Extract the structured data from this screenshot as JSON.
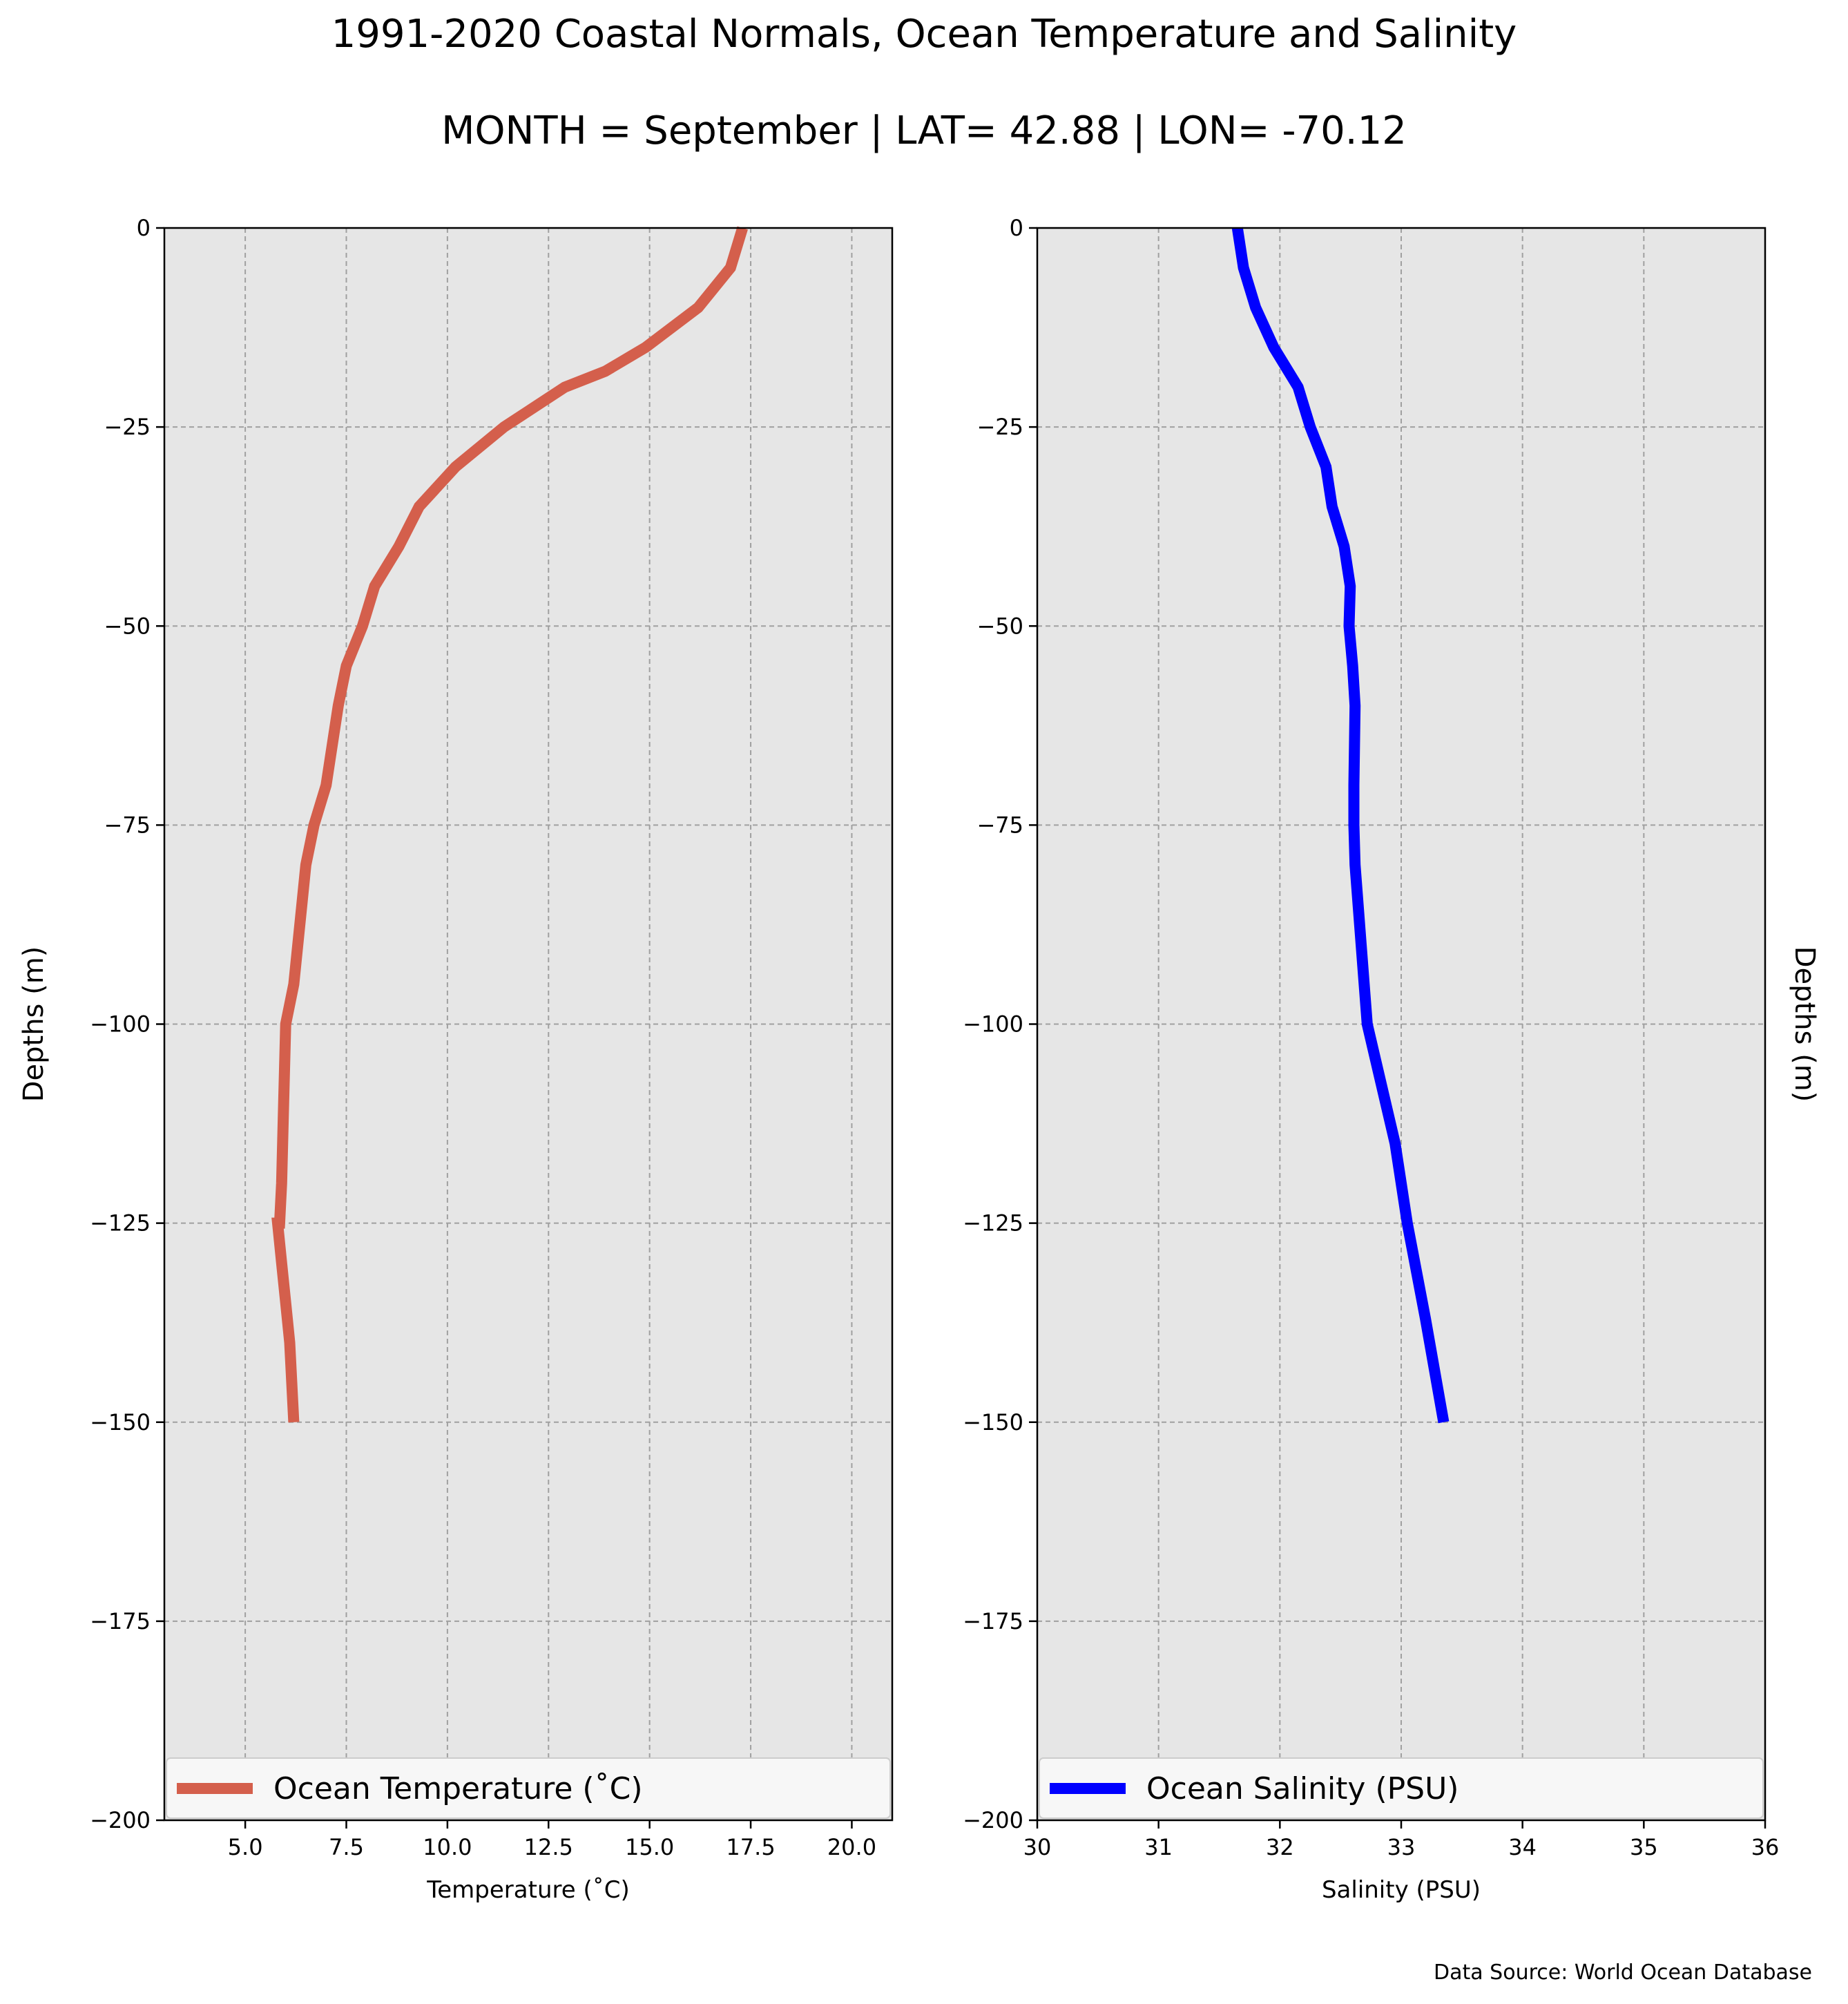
{
  "title": "1991-2020 Coastal Normals, Ocean Temperature and Salinity",
  "subtitle": "MONTH = September | LAT= 42.88 | LON= -70.12",
  "source_note": "Data Source: World Ocean Database",
  "colors": {
    "panel_bg": "#e6e6e6",
    "grid": "#a0a0a0",
    "temperature": "#d45f4c",
    "salinity": "#0000ff"
  },
  "chart_data": [
    {
      "type": "line",
      "xlabel": "Temperature ($^\\circ$C)",
      "xlabel_display": "Temperature (˚C)",
      "ylabel": "Depths (m)",
      "xlim": [
        3,
        21
      ],
      "ylim": [
        -200,
        0
      ],
      "xticks": [
        5.0,
        7.5,
        10.0,
        12.5,
        15.0,
        17.5,
        20.0
      ],
      "xtick_labels": [
        "5.0",
        "7.5",
        "10.0",
        "12.5",
        "15.0",
        "17.5",
        "20.0"
      ],
      "yticks": [
        0,
        -25,
        -50,
        -75,
        -100,
        -125,
        -150,
        -175,
        -200
      ],
      "ytick_labels": [
        "0",
        "−25",
        "−50",
        "−75",
        "−100",
        "−125",
        "−150",
        "−175",
        "−200"
      ],
      "ylabel_side": "left",
      "grid": true,
      "legend_position": "bottom",
      "series": [
        {
          "name": "Ocean Temperature (˚C)",
          "color": "#d45f4c",
          "x": [
            17.3,
            17.0,
            16.2,
            14.9,
            13.9,
            12.9,
            11.4,
            10.2,
            9.3,
            8.8,
            8.2,
            7.9,
            7.5,
            7.3,
            7.0,
            6.7,
            6.5,
            6.4,
            6.2,
            6.0,
            5.95,
            5.9,
            5.85,
            5.8,
            5.9,
            6.0,
            6.1,
            6.2
          ],
          "y": [
            0,
            -5,
            -10,
            -15,
            -18,
            -20,
            -25,
            -30,
            -35,
            -40,
            -45,
            -50,
            -55,
            -60,
            -70,
            -75,
            -80,
            -85,
            -95,
            -100,
            -110,
            -120,
            -125,
            -125,
            -130,
            -135,
            -140,
            -150
          ]
        }
      ]
    },
    {
      "type": "line",
      "xlabel": "Salinity (PSU)",
      "ylabel": "Depths (m)",
      "xlim": [
        30,
        36
      ],
      "ylim": [
        -200,
        0
      ],
      "xticks": [
        30,
        31,
        32,
        33,
        34,
        35,
        36
      ],
      "xtick_labels": [
        "30",
        "31",
        "32",
        "33",
        "34",
        "35",
        "36"
      ],
      "yticks": [
        0,
        -25,
        -50,
        -75,
        -100,
        -125,
        -150,
        -175,
        -200
      ],
      "ytick_labels": [
        "0",
        "−25",
        "−50",
        "−75",
        "−100",
        "−125",
        "−150",
        "−175",
        "−200"
      ],
      "ylabel_side": "right",
      "grid": true,
      "legend_position": "bottom",
      "series": [
        {
          "name": "Ocean Salinity (PSU)",
          "color": "#0000ff",
          "x": [
            31.65,
            31.7,
            31.8,
            31.95,
            32.15,
            32.25,
            32.38,
            32.43,
            32.53,
            32.58,
            32.57,
            32.6,
            32.62,
            32.61,
            32.61,
            32.62,
            32.67,
            32.72,
            32.95,
            33.05,
            33.2,
            33.35
          ],
          "y": [
            0,
            -5,
            -10,
            -15,
            -20,
            -25,
            -30,
            -35,
            -40,
            -45,
            -50,
            -55,
            -60,
            -70,
            -75,
            -80,
            -90,
            -100,
            -115,
            -125,
            -137,
            -150
          ]
        }
      ]
    }
  ]
}
